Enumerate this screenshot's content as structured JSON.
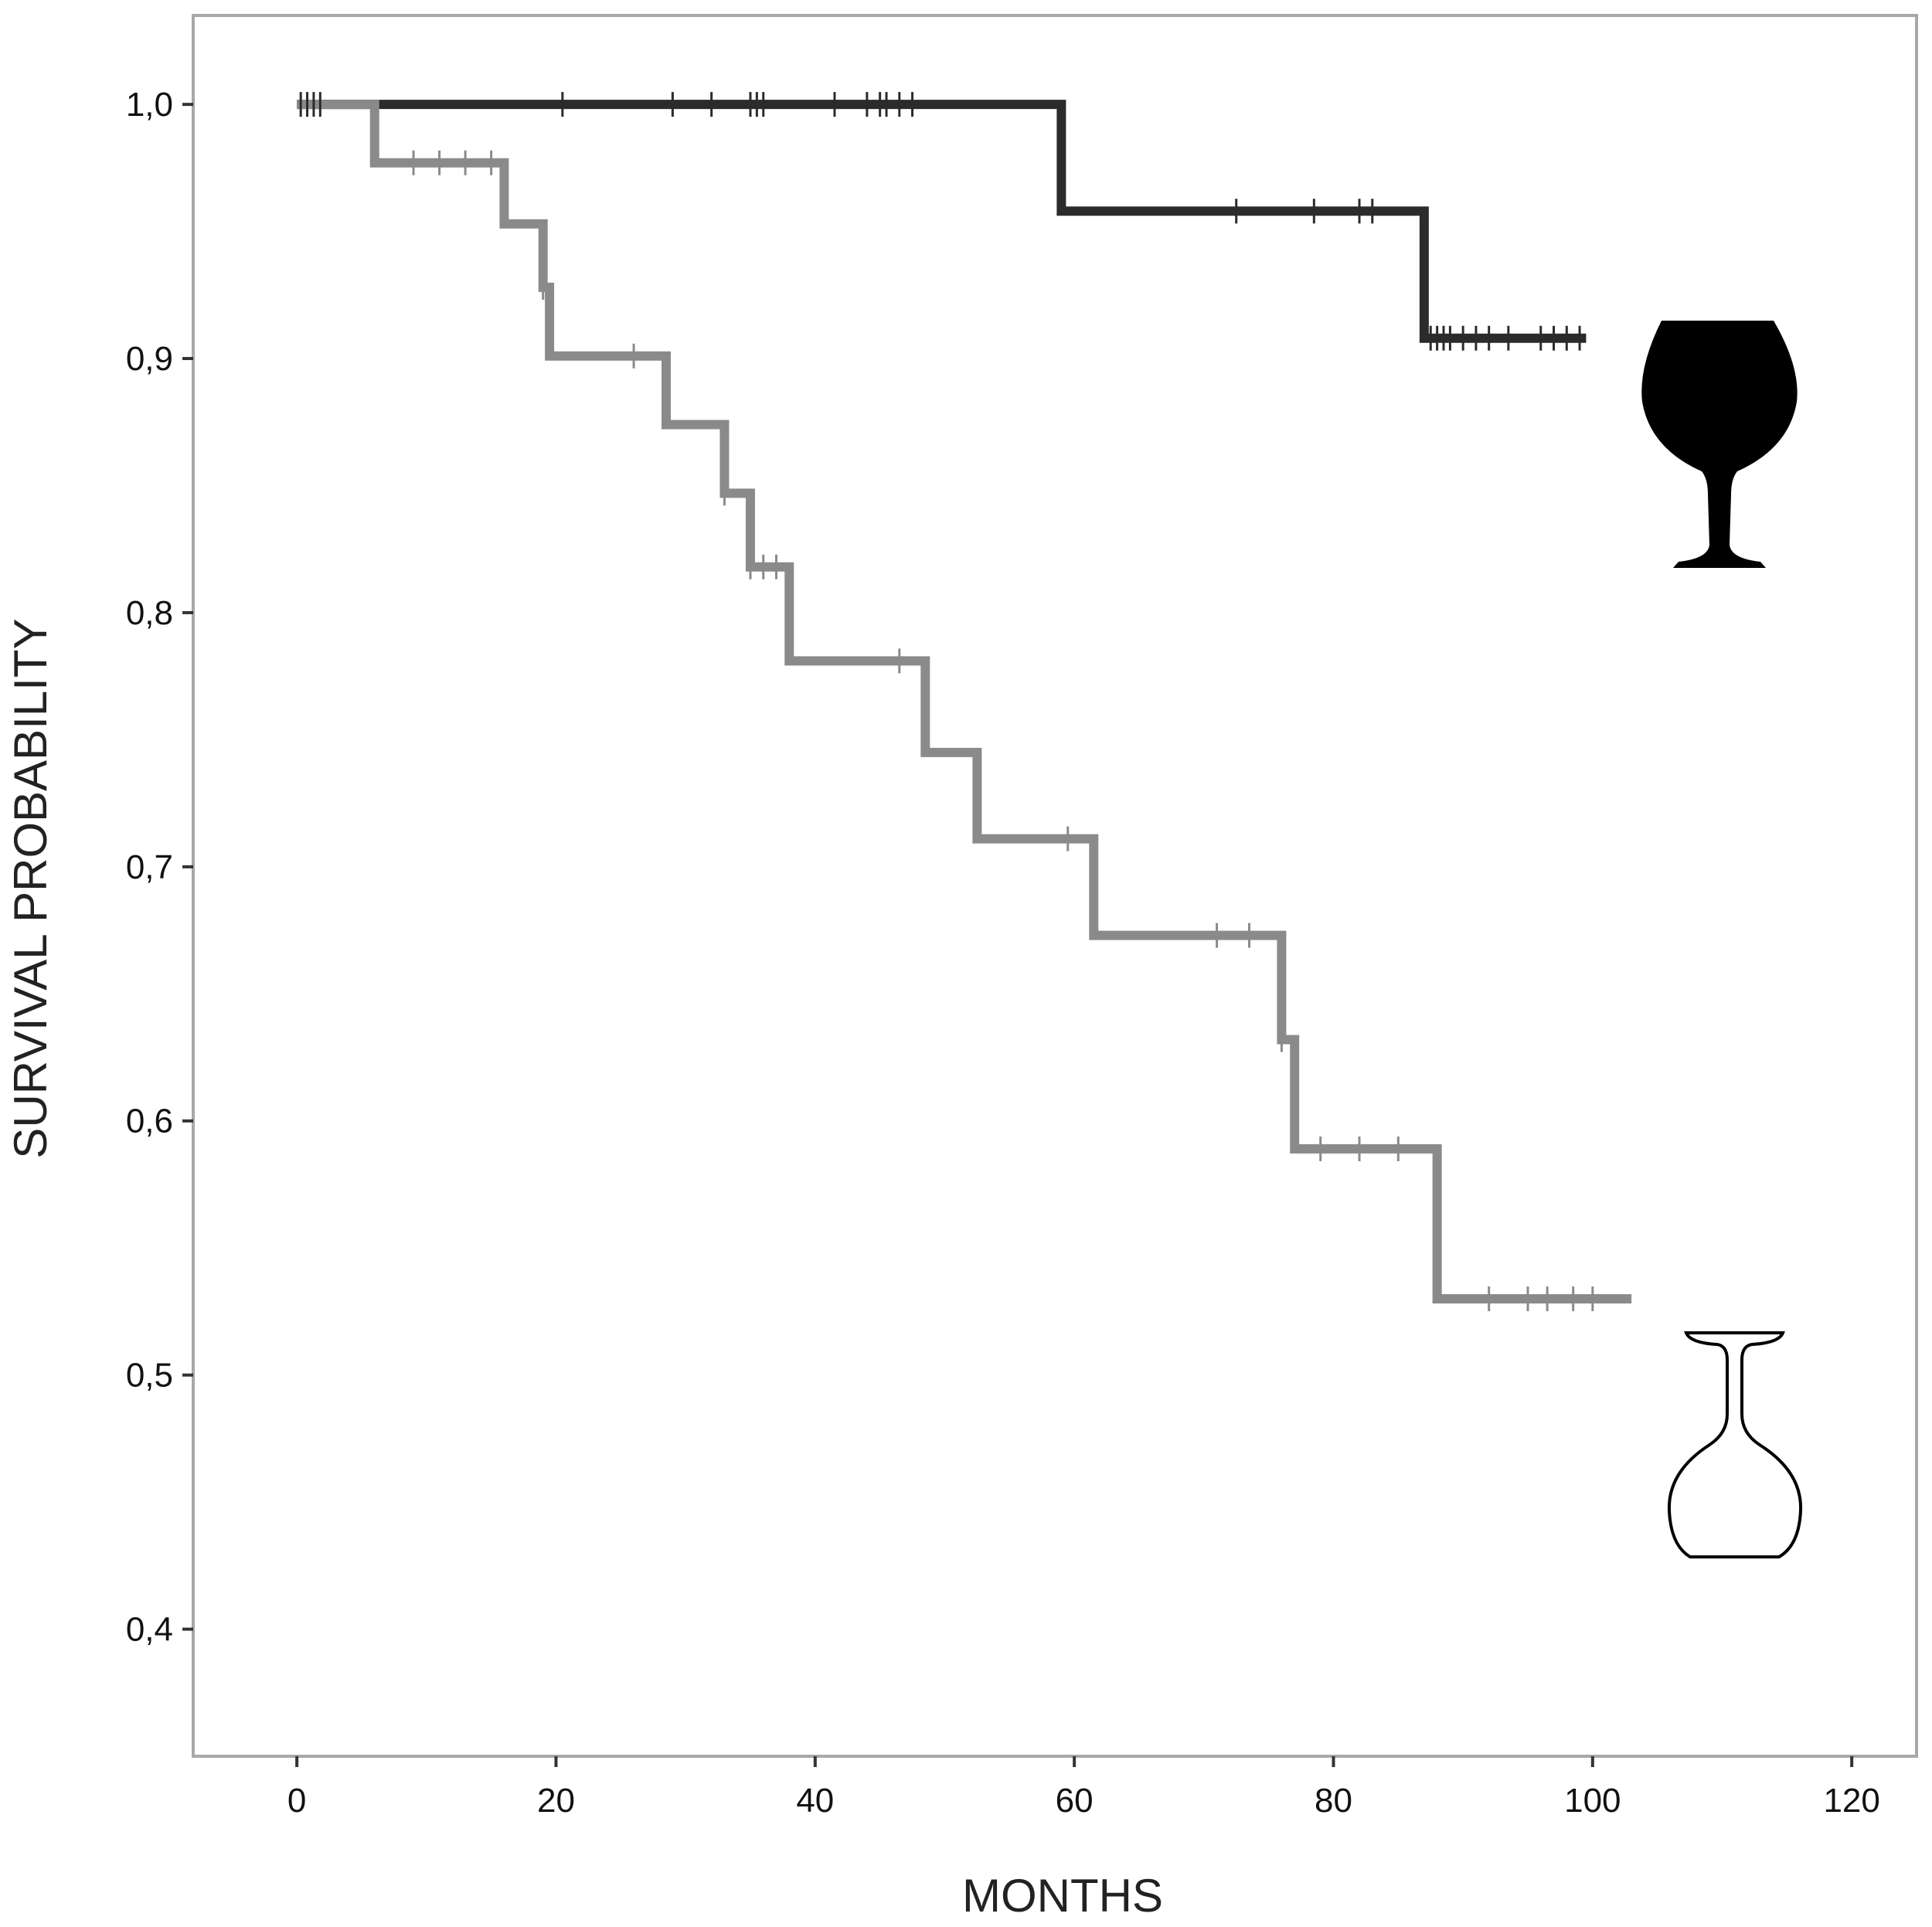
{
  "chart_data": {
    "type": "line",
    "step": true,
    "xlabel": "MONTHS",
    "ylabel": "SURVIVAL PROBABILITY",
    "title": "",
    "xlim": [
      -8,
      125
    ],
    "ylim": [
      0.35,
      1.035
    ],
    "xticks": [
      0,
      20,
      40,
      60,
      80,
      100,
      120
    ],
    "yticks": [
      0.4,
      0.5,
      0.6,
      0.7,
      0.8,
      0.9,
      1.0
    ],
    "ytick_labels": [
      "0,4",
      "0,5",
      "0,6",
      "0,7",
      "0,8",
      "0,9",
      "1,0"
    ],
    "grid": false,
    "legend": "symbols at right end of each curve",
    "series": [
      {
        "symbol": "filled-wine-glass-icon",
        "color": "#2b2b2b",
        "x": [
          0,
          59,
          59,
          87,
          87,
          99.5
        ],
        "y": [
          1.0,
          1.0,
          0.958,
          0.958,
          0.908,
          0.908
        ],
        "censored_x": [
          0.3,
          0.8,
          1.3,
          1.8,
          20.5,
          29,
          32,
          35,
          35.5,
          36,
          41.5,
          44,
          45,
          45.5,
          46.5,
          47.5,
          72.5,
          78.5,
          82,
          83,
          87.5,
          88,
          88.5,
          89,
          90,
          91,
          92,
          93.5,
          96,
          97,
          98,
          99
        ]
      },
      {
        "symbol": "outline-overturned-wine-glass-icon",
        "color": "#8a8a8a",
        "x": [
          0,
          6,
          6,
          16,
          16,
          19,
          19,
          19.5,
          19.5,
          28.5,
          28.5,
          33,
          33,
          35,
          35,
          36,
          36,
          38,
          38,
          48.5,
          48.5,
          52.5,
          52.5,
          61.5,
          61.5,
          76,
          76,
          77,
          77,
          88,
          88,
          103
        ],
        "y": [
          1.0,
          1.0,
          0.977,
          0.977,
          0.953,
          0.953,
          0.928,
          0.928,
          0.901,
          0.901,
          0.874,
          0.874,
          0.847,
          0.847,
          0.818,
          0.818,
          0.818,
          0.818,
          0.781,
          0.781,
          0.745,
          0.745,
          0.711,
          0.711,
          0.673,
          0.673,
          0.632,
          0.632,
          0.589,
          0.589,
          0.53,
          0.53
        ],
        "censored_x": [
          9,
          11,
          13,
          15,
          19,
          26,
          33,
          35,
          36,
          37,
          46.5,
          59.5,
          71,
          73.5,
          76,
          79,
          82,
          85,
          92,
          95,
          96.5,
          98.5,
          100
        ]
      }
    ]
  }
}
